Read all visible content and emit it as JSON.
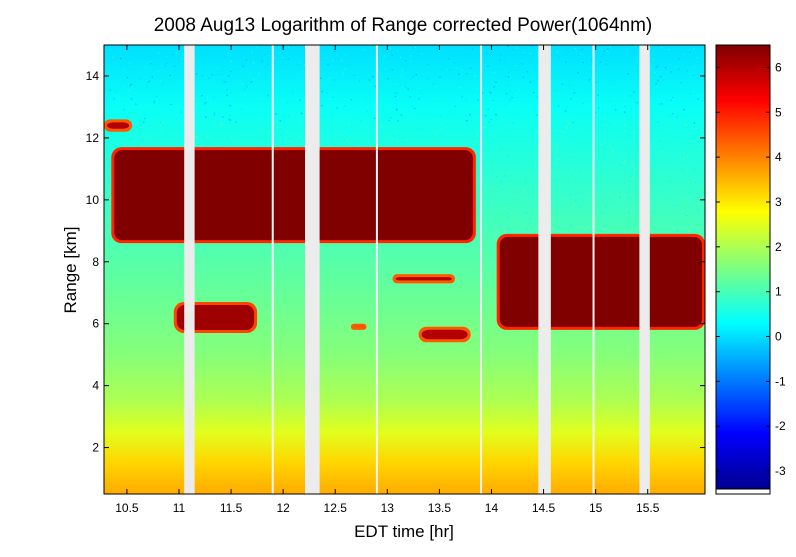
{
  "chart_data": {
    "type": "heatmap",
    "title": "2008 Aug13  Logarithm of Range corrected Power(1064nm)",
    "xlabel": "EDT time [hr]",
    "ylabel": "Range [km]",
    "xlim": [
      10.28,
      16.05
    ],
    "ylim": [
      0.5,
      15
    ],
    "xticks": [
      10.5,
      11,
      11.5,
      12,
      12.5,
      13,
      13.5,
      14,
      14.5,
      15,
      15.5
    ],
    "xtick_labels": [
      "10.5",
      "11",
      "11.5",
      "12",
      "12.5",
      "13",
      "13.5",
      "14",
      "14.5",
      "15",
      "15.5"
    ],
    "yticks": [
      2,
      4,
      6,
      8,
      10,
      12,
      14
    ],
    "ytick_labels": [
      "2",
      "4",
      "6",
      "8",
      "10",
      "12",
      "14"
    ],
    "colorbar": {
      "colormap": "jet",
      "clim": [
        -3.4,
        6.5
      ],
      "ticks": [
        -3,
        -2,
        -1,
        0,
        1,
        2,
        3,
        4,
        5,
        6
      ],
      "tick_labels": [
        "-3",
        "-2",
        "-1",
        "0",
        "1",
        "2",
        "3",
        "4",
        "5",
        "6"
      ]
    },
    "data_gaps_hr": [
      [
        11.05,
        11.15
      ],
      [
        12.21,
        12.35
      ],
      [
        14.45,
        14.57
      ],
      [
        15.42,
        15.52
      ]
    ],
    "thin_gaps_hr": [
      11.9,
      12.9,
      13.9,
      14.98
    ],
    "features": [
      {
        "label": "cirrus",
        "x": [
          10.35,
          13.85
        ],
        "y": [
          8.6,
          11.7
        ],
        "value": 6.5
      },
      {
        "label": "cirrus",
        "x": [
          14.05,
          16.05
        ],
        "y": [
          5.8,
          8.9
        ],
        "value": 6.5
      },
      {
        "label": "cloud",
        "x": [
          10.28,
          10.55
        ],
        "y": [
          12.2,
          12.6
        ],
        "value": 6.0
      },
      {
        "label": "cloud",
        "x": [
          10.95,
          11.75
        ],
        "y": [
          5.7,
          6.7
        ],
        "value": 6.2
      },
      {
        "label": "cloud",
        "x": [
          12.65,
          12.8
        ],
        "y": [
          5.8,
          6.0
        ],
        "value": 6.0
      },
      {
        "label": "cloud",
        "x": [
          13.3,
          13.8
        ],
        "y": [
          5.4,
          5.9
        ],
        "value": 6.0
      },
      {
        "label": "cloud",
        "x": [
          13.05,
          13.65
        ],
        "y": [
          7.3,
          7.6
        ],
        "value": 6.0
      }
    ],
    "background_profile": {
      "range_km": [
        0.5,
        1.5,
        2.5,
        3.5,
        5.0,
        7.0,
        9.0,
        11.0,
        13.0,
        15.0
      ],
      "value": [
        3.6,
        3.2,
        2.5,
        2.0,
        1.6,
        1.3,
        1.0,
        0.7,
        0.4,
        0.0
      ]
    }
  }
}
